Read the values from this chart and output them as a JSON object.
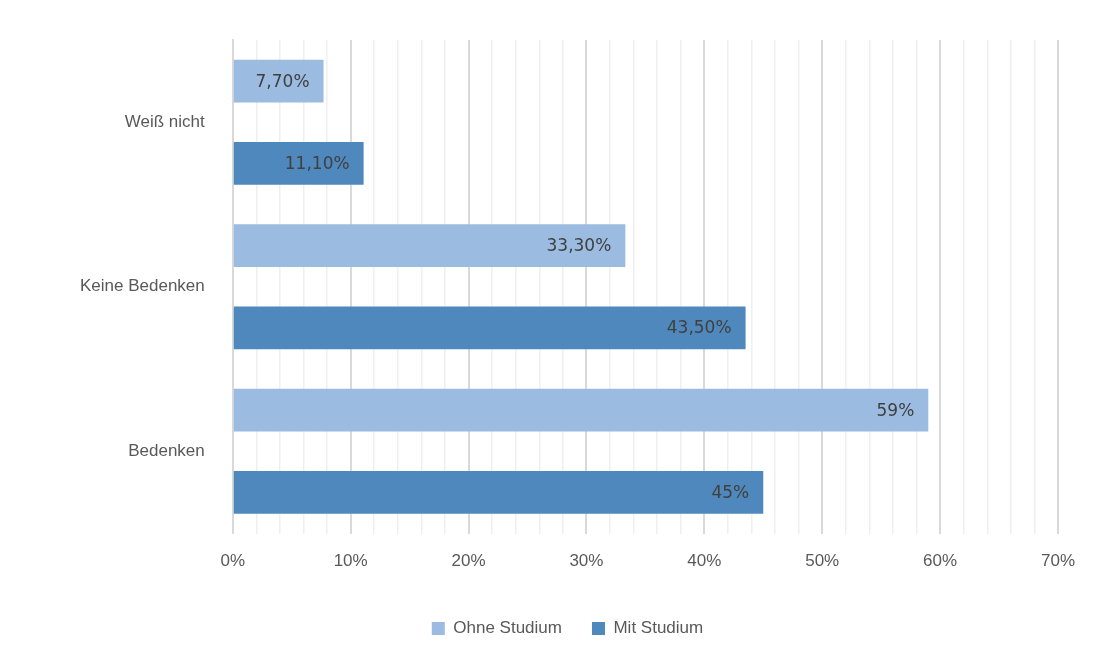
{
  "chart_data": {
    "type": "bar",
    "orientation": "horizontal",
    "categories": [
      "Weiß nicht",
      "Keine Bedenken",
      "Bedenken"
    ],
    "series": [
      {
        "name": "Ohne Studium",
        "color": "#9bbbe0",
        "values": [
          7.7,
          33.3,
          59
        ],
        "value_labels": [
          "7,70%",
          "33,30%",
          "59%"
        ]
      },
      {
        "name": "Mit Studium",
        "color": "#4f88bd",
        "values": [
          11.1,
          43.5,
          45
        ],
        "value_labels": [
          "11,10%",
          "43,50%",
          "45%"
        ]
      }
    ],
    "xlim": [
      0,
      70
    ],
    "xticks": [
      {
        "value": 0,
        "label": "0%"
      },
      {
        "value": 2,
        "label": null
      },
      {
        "value": 4,
        "label": null
      },
      {
        "value": 6,
        "label": null
      },
      {
        "value": 8,
        "label": null
      },
      {
        "value": 10,
        "label": "10%"
      },
      {
        "value": 12,
        "label": null
      },
      {
        "value": 14,
        "label": null
      },
      {
        "value": 16,
        "label": null
      },
      {
        "value": 18,
        "label": null
      },
      {
        "value": 20,
        "label": "20%"
      },
      {
        "value": 22,
        "label": null
      },
      {
        "value": 24,
        "label": null
      },
      {
        "value": 26,
        "label": null
      },
      {
        "value": 28,
        "label": null
      },
      {
        "value": 30,
        "label": "30%"
      },
      {
        "value": 32,
        "label": null
      },
      {
        "value": 34,
        "label": null
      },
      {
        "value": 36,
        "label": null
      },
      {
        "value": 38,
        "label": null
      },
      {
        "value": 40,
        "label": "40%"
      },
      {
        "value": 42,
        "label": null
      },
      {
        "value": 44,
        "label": null
      },
      {
        "value": 46,
        "label": null
      },
      {
        "value": 48,
        "label": null
      },
      {
        "value": 50,
        "label": "50%"
      },
      {
        "value": 52,
        "label": null
      },
      {
        "value": 54,
        "label": null
      },
      {
        "value": 56,
        "label": null
      },
      {
        "value": 58,
        "label": null
      },
      {
        "value": 60,
        "label": "60%"
      },
      {
        "value": 62,
        "label": null
      },
      {
        "value": 64,
        "label": null
      },
      {
        "value": 66,
        "label": null
      },
      {
        "value": 68,
        "label": null
      },
      {
        "value": 70,
        "label": "70%"
      }
    ],
    "grid": "x",
    "legend": "bottom"
  }
}
